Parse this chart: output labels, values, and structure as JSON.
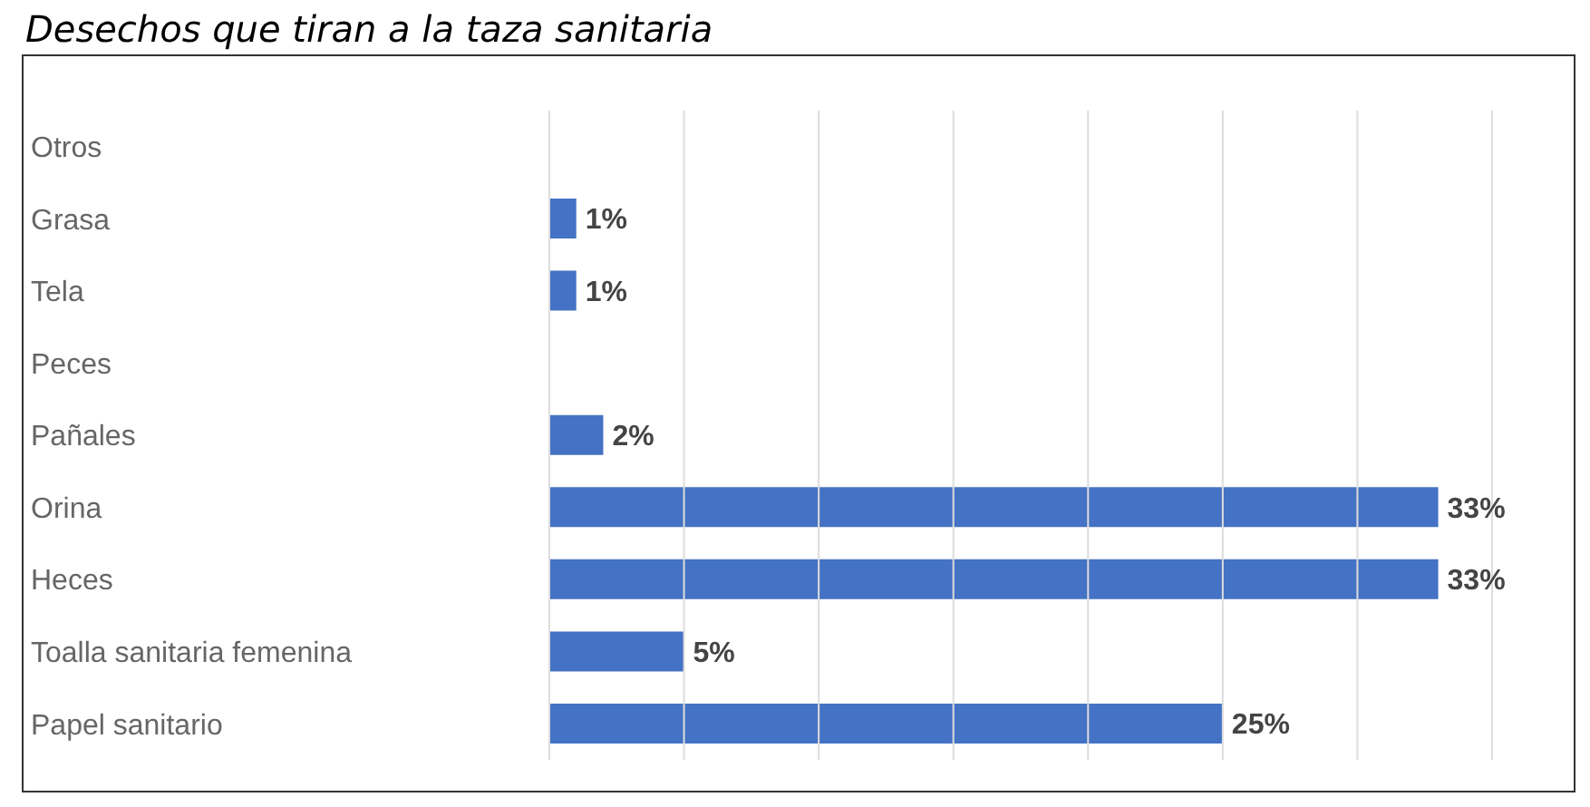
{
  "chart_data": {
    "type": "bar",
    "orientation": "horizontal",
    "title": "Desechos que tiran a la taza sanitaria",
    "categories": [
      "Otros",
      "Grasa",
      "Tela",
      "Peces",
      "Pañales",
      "Orina",
      "Heces",
      "Toalla sanitaria femenina",
      "Papel sanitario"
    ],
    "values": [
      0,
      1,
      1,
      0,
      2,
      33,
      33,
      5,
      25
    ],
    "value_labels": [
      null,
      "1%",
      "1%",
      null,
      "2%",
      "33%",
      "33%",
      "5%",
      "25%"
    ],
    "color": "#4472c4",
    "xlim": [
      0,
      35
    ],
    "xticks": [
      {
        "value": 0,
        "label": null
      },
      {
        "value": 5,
        "label": null
      },
      {
        "value": 10,
        "label": null
      },
      {
        "value": 15,
        "label": null
      },
      {
        "value": 20,
        "label": null
      },
      {
        "value": 25,
        "label": null
      },
      {
        "value": 30,
        "label": null
      },
      {
        "value": 35,
        "label": null
      }
    ],
    "grid": "x",
    "tick_labels": "y",
    "legend": false
  }
}
